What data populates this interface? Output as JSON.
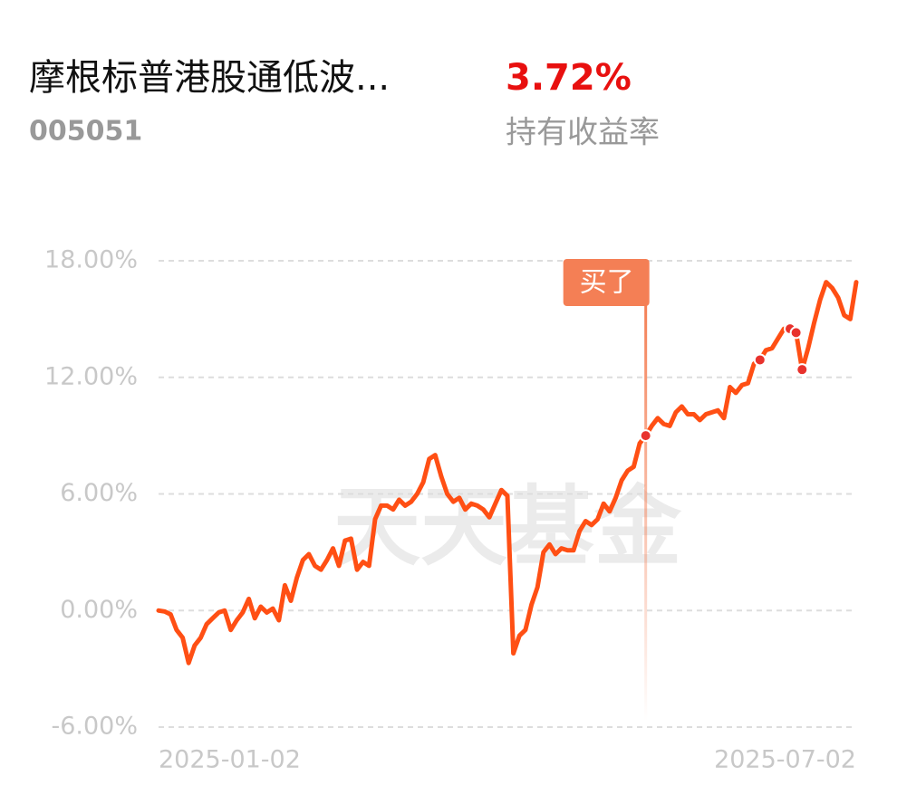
{
  "header": {
    "title": "摩根标普港股通低波...",
    "code": "005051",
    "return": "3.72%",
    "return_label": "持有收益率"
  },
  "chart_data": {
    "type": "line",
    "color": "#ff4f14",
    "grid": true,
    "watermark": "天天基金",
    "categories": [
      "2025-01-02",
      null,
      null,
      null,
      null,
      null,
      null,
      null,
      null,
      null,
      null,
      null,
      null,
      null,
      null,
      null,
      null,
      null,
      null,
      null,
      null,
      null,
      null,
      null,
      null,
      null,
      null,
      null,
      null,
      null,
      null,
      null,
      null,
      null,
      null,
      null,
      null,
      null,
      null,
      null,
      null,
      null,
      null,
      null,
      null,
      null,
      null,
      null,
      null,
      null,
      null,
      null,
      null,
      null,
      null,
      null,
      null,
      null,
      null,
      null,
      null,
      null,
      null,
      null,
      null,
      null,
      null,
      null,
      null,
      null,
      null,
      null,
      null,
      null,
      null,
      null,
      null,
      null,
      null,
      null,
      null,
      null,
      null,
      null,
      null,
      null,
      null,
      null,
      null,
      null,
      null,
      null,
      null,
      null,
      null,
      null,
      null,
      null,
      null,
      null,
      null,
      null,
      null,
      null,
      null,
      null,
      null,
      null,
      null,
      null,
      null,
      null,
      null,
      null,
      null,
      null,
      "2025-07-02"
    ],
    "values": [
      0.0,
      -0.05,
      -0.2,
      -1.0,
      -1.4,
      -2.7,
      -1.8,
      -1.4,
      -0.7,
      -0.4,
      -0.1,
      0.0,
      -1.0,
      -0.5,
      -0.1,
      0.6,
      -0.4,
      0.2,
      -0.1,
      0.1,
      -0.5,
      1.3,
      0.5,
      1.7,
      2.6,
      2.9,
      2.3,
      2.1,
      2.6,
      3.2,
      2.3,
      3.6,
      3.7,
      2.1,
      2.5,
      2.3,
      4.7,
      5.4,
      5.4,
      5.2,
      5.7,
      5.4,
      5.6,
      6.0,
      6.6,
      7.8,
      8.0,
      6.9,
      6.0,
      5.6,
      5.8,
      5.2,
      5.5,
      5.4,
      5.2,
      4.8,
      5.5,
      6.2,
      5.9,
      -2.2,
      -1.3,
      -1.0,
      0.3,
      1.2,
      3.0,
      3.4,
      2.9,
      3.2,
      3.1,
      3.1,
      4.1,
      4.6,
      4.4,
      4.7,
      5.5,
      5.1,
      5.8,
      6.7,
      7.2,
      7.4,
      8.6,
      9.0,
      9.5,
      9.9,
      9.6,
      9.5,
      10.2,
      10.5,
      10.1,
      10.1,
      9.8,
      10.1,
      10.2,
      10.3,
      9.9,
      11.5,
      11.2,
      11.6,
      11.7,
      12.7,
      12.9,
      13.4,
      13.5,
      14.0,
      14.5,
      14.5,
      14.3,
      12.4,
      13.5,
      14.8,
      16.0,
      16.9,
      16.6,
      16.1,
      15.2,
      15.0,
      16.9
    ],
    "markers": [
      81,
      100,
      105,
      106,
      107
    ],
    "annotation": {
      "label": "买了",
      "index": 81
    },
    "ylim": [
      -6,
      18
    ],
    "yticks": [
      {
        "value": -6,
        "label": "-6.00%"
      },
      {
        "value": 0,
        "label": "0.00%"
      },
      {
        "value": 6,
        "label": "6.00%"
      },
      {
        "value": 12,
        "label": "12.00%"
      },
      {
        "value": 18,
        "label": "18.00%"
      }
    ]
  }
}
